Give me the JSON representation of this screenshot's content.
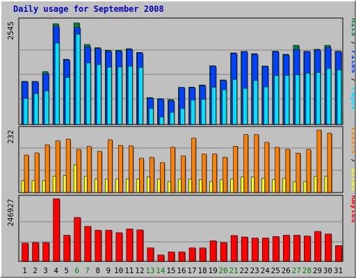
{
  "chart_data": [
    {
      "type": "bar",
      "title": "Daily usage for September 2008",
      "ymax_label": "2545",
      "ylim": [
        0,
        2545
      ],
      "categories": [
        "1",
        "2",
        "3",
        "4",
        "5",
        "6",
        "7",
        "8",
        "9",
        "10",
        "11",
        "12",
        "13",
        "14",
        "15",
        "16",
        "17",
        "18",
        "19",
        "20",
        "21",
        "22",
        "23",
        "24",
        "25",
        "26",
        "27",
        "28",
        "29",
        "30",
        "31"
      ],
      "weekend_days": [
        "6",
        "7",
        "13",
        "14",
        "20",
        "21",
        "27",
        "28"
      ],
      "axis_title_parts": [
        "Pages",
        "Files",
        "Hits"
      ],
      "colors": {
        "Hits": "#008040",
        "Files": "#0040ff",
        "Pages": "#00e0ff"
      },
      "series": [
        {
          "name": "Hits",
          "values": [
            1080,
            1080,
            1325,
            2525,
            1635,
            2545,
            2005,
            1925,
            1860,
            1860,
            1900,
            1805,
            675,
            645,
            625,
            930,
            935,
            990,
            1470,
            1115,
            1795,
            1830,
            1775,
            1465,
            1835,
            1760,
            1985,
            1835,
            1885,
            1985,
            1835
          ]
        },
        {
          "name": "Files",
          "values": [
            1070,
            1070,
            1265,
            2455,
            1615,
            2430,
            1945,
            1905,
            1835,
            1835,
            1880,
            1795,
            655,
            630,
            590,
            925,
            920,
            975,
            1460,
            1100,
            1780,
            1830,
            1760,
            1455,
            1825,
            1740,
            1880,
            1830,
            1865,
            1925,
            1825
          ]
        },
        {
          "name": "Pages",
          "values": [
            650,
            770,
            840,
            2040,
            1180,
            2260,
            1540,
            1500,
            1435,
            1435,
            1460,
            1430,
            400,
            185,
            305,
            400,
            610,
            630,
            930,
            870,
            1130,
            905,
            1100,
            940,
            1225,
            1225,
            1240,
            1280,
            1300,
            1405,
            1370
          ]
        }
      ]
    },
    {
      "type": "bar",
      "ymax_label": "232",
      "ylim": [
        0,
        232
      ],
      "axis_title_parts": [
        "Sites",
        "Visits"
      ],
      "colors": {
        "Visits": "#ff8000",
        "Sites": "#ffff00"
      },
      "series": [
        {
          "name": "Visits",
          "values": [
            139,
            147,
            177,
            192,
            198,
            160,
            171,
            153,
            196,
            175,
            173,
            127,
            131,
            111,
            168,
            136,
            202,
            143,
            143,
            131,
            172,
            215,
            215,
            186,
            168,
            160,
            146,
            160,
            232,
            220
          ]
        },
        {
          "name": "Sites",
          "values": [
            44,
            44,
            44,
            61,
            63,
            103,
            60,
            50,
            50,
            50,
            50,
            50,
            58,
            50,
            41,
            50,
            50,
            48,
            41,
            48,
            50,
            58,
            58,
            53,
            48,
            53,
            40,
            41,
            61,
            60
          ]
        }
      ]
    },
    {
      "type": "bar",
      "ymax_label": "246927",
      "ylim": [
        0,
        246927
      ],
      "axis_title_parts": [
        "KBytes"
      ],
      "colors": {
        "KBytes": "#ff0000"
      },
      "series": [
        {
          "name": "KBytes",
          "values": [
            72000,
            74000,
            74000,
            246927,
            103000,
            173000,
            138000,
            123000,
            123000,
            113000,
            128000,
            124000,
            53000,
            25000,
            37000,
            37000,
            53000,
            53000,
            81000,
            74000,
            102000,
            96000,
            92000,
            92000,
            98000,
            103000,
            103000,
            100000,
            118000,
            108000,
            62000
          ]
        }
      ]
    }
  ]
}
